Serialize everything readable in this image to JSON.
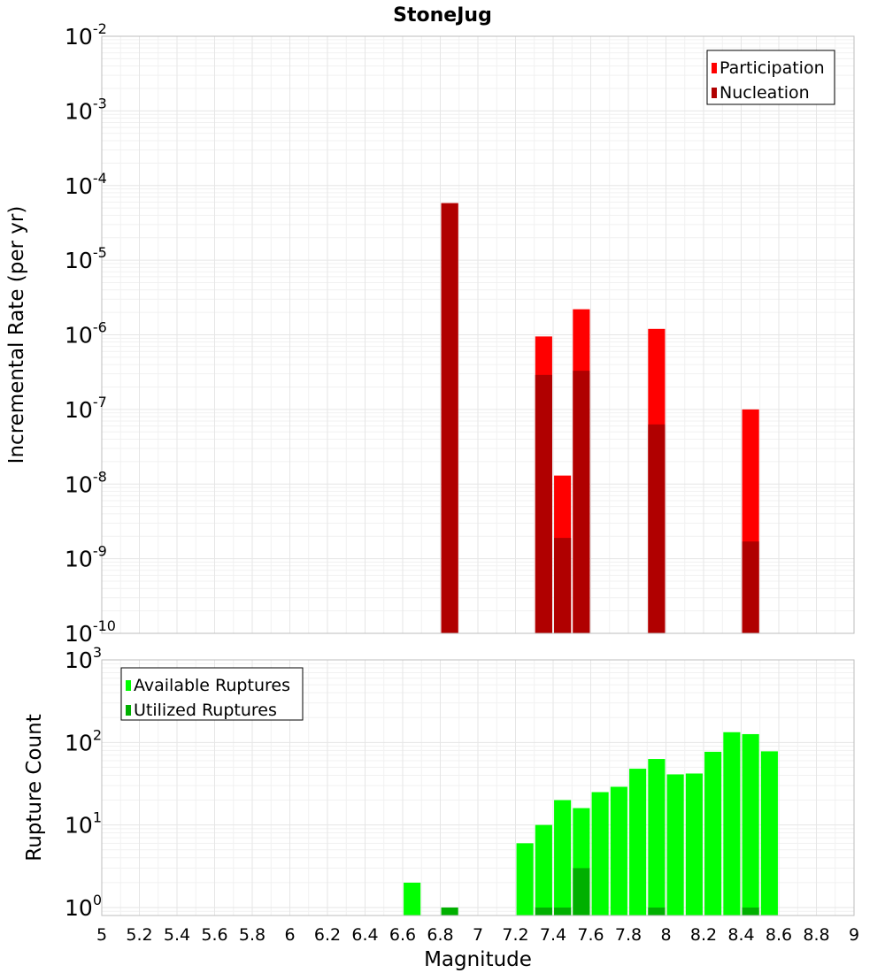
{
  "title": "StoneJug",
  "colors": {
    "participation": "#ff0000",
    "nucleation": "#b00000",
    "available": "#00ff00",
    "utilized": "#00b000"
  },
  "chart_data": [
    {
      "type": "bar",
      "title": "StoneJug",
      "ylabel": "Incremental Rate (per yr)",
      "xlabel": "",
      "yscale": "log",
      "ylim": [
        1e-10,
        0.01
      ],
      "xlim": [
        5,
        9
      ],
      "grid": true,
      "legend_position": "top-right",
      "ytick_exponents": [
        "-10",
        "-9",
        "-8",
        "-7",
        "-6",
        "-5",
        "-4",
        "-3",
        "-2"
      ],
      "series": [
        {
          "name": "Participation",
          "color_key": "participation",
          "x": [
            6.85,
            7.35,
            7.45,
            7.55,
            7.95,
            8.45
          ],
          "values": [
            5.8e-05,
            9.5e-07,
            1.3e-08,
            2.2e-06,
            1.2e-06,
            1e-07
          ]
        },
        {
          "name": "Nucleation",
          "color_key": "nucleation",
          "x": [
            6.85,
            7.35,
            7.45,
            7.55,
            7.95,
            8.45
          ],
          "values": [
            5.8e-05,
            2.9e-07,
            1.9e-09,
            3.3e-07,
            6.3e-08,
            1.7e-09
          ]
        }
      ]
    },
    {
      "type": "bar",
      "title": "",
      "ylabel": "Rupture Count",
      "xlabel": "Magnitude",
      "yscale": "log",
      "ylim": [
        0.8,
        1000
      ],
      "xlim": [
        5,
        9
      ],
      "grid": true,
      "legend_position": "top-left",
      "xticks": [
        "5",
        "5.2",
        "5.4",
        "5.6",
        "5.8",
        "6",
        "6.2",
        "6.4",
        "6.6",
        "6.8",
        "7",
        "7.2",
        "7.4",
        "7.6",
        "7.8",
        "8",
        "8.2",
        "8.4",
        "8.6",
        "8.8",
        "9"
      ],
      "ytick_exponents": [
        "0",
        "1",
        "2",
        "3"
      ],
      "series": [
        {
          "name": "Available Ruptures",
          "color_key": "available",
          "x": [
            6.65,
            7.25,
            7.35,
            7.45,
            7.55,
            7.65,
            7.75,
            7.85,
            7.95,
            8.05,
            8.15,
            8.25,
            8.35,
            8.45,
            8.55
          ],
          "values": [
            2,
            6,
            10,
            20,
            16,
            25,
            29,
            48,
            63,
            41,
            42,
            77,
            133,
            126,
            78
          ]
        },
        {
          "name": "Utilized Ruptures",
          "color_key": "utilized",
          "x": [
            6.85,
            7.35,
            7.45,
            7.55,
            7.95,
            8.45
          ],
          "values": [
            1,
            1,
            1,
            3,
            1,
            1
          ]
        }
      ]
    }
  ]
}
